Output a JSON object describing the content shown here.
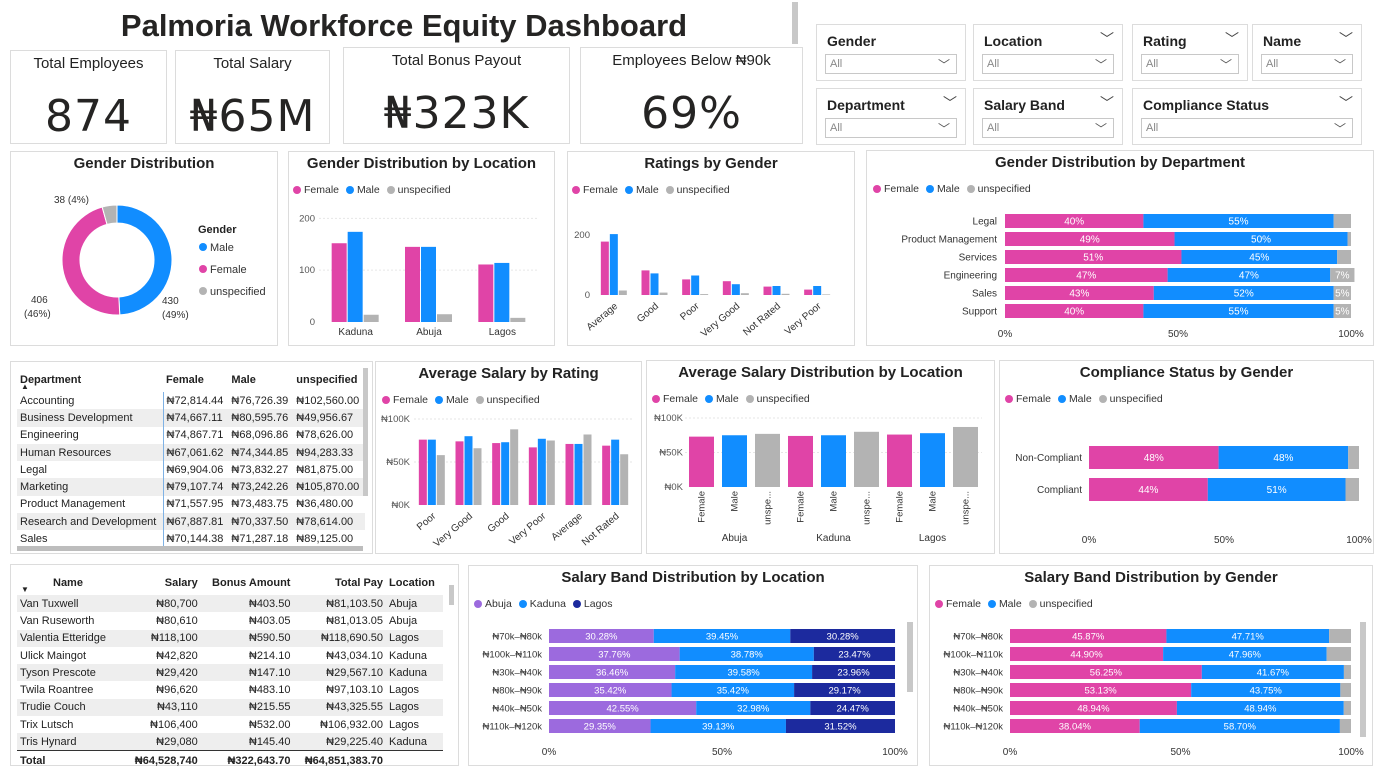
{
  "header": {
    "title": "Palmoria Workforce Equity Dashboard"
  },
  "kpis": [
    {
      "label": "Total Employees",
      "value": "874"
    },
    {
      "label": "Total Salary",
      "value": "₦65M"
    },
    {
      "label": "Total Bonus Payout",
      "value": "₦323K"
    },
    {
      "label": "Employees Below ₦90k",
      "value": "69%"
    }
  ],
  "slicers": [
    {
      "label": "Gender",
      "value": "All"
    },
    {
      "label": "Location",
      "value": "All"
    },
    {
      "label": "Rating",
      "value": "All"
    },
    {
      "label": "Name",
      "value": "All"
    },
    {
      "label": "Department",
      "value": "All"
    },
    {
      "label": "Salary Band",
      "value": "All"
    },
    {
      "label": "Compliance Status",
      "value": "All"
    }
  ],
  "colors": {
    "female": "#E044A7",
    "male": "#118DFF",
    "unspecified": "#B3B3B3",
    "abuja": "#9C6ADE",
    "kaduna": "#118DFF",
    "lagos": "#1C2A9E"
  },
  "legend": {
    "female": "Female",
    "male": "Male",
    "unspecified": "unspecified",
    "abuja": "Abuja",
    "kaduna": "Kaduna",
    "lagos": "Lagos"
  },
  "chart_data": [
    {
      "id": "gender_distribution",
      "type": "pie",
      "title": "Gender Distribution",
      "legend_title": "Gender",
      "legend": [
        "Male",
        "Female",
        "unspecified"
      ],
      "slices": [
        {
          "name": "Male",
          "value": 430,
          "label": "430\n(49%)"
        },
        {
          "name": "Female",
          "value": 406,
          "label": "406\n(46%)"
        },
        {
          "name": "unspecified",
          "value": 38,
          "label": "38 (4%)"
        }
      ]
    },
    {
      "id": "gender_by_location",
      "type": "bar",
      "title": "Gender Distribution by Location",
      "categories": [
        "Kaduna",
        "Abuja",
        "Lagos"
      ],
      "yticks": [
        "0",
        "100",
        "200"
      ],
      "ylim": [
        0,
        220
      ],
      "series": [
        {
          "name": "Female",
          "values": [
            152,
            145,
            111
          ]
        },
        {
          "name": "Male",
          "values": [
            174,
            145,
            114
          ]
        },
        {
          "name": "unspecified",
          "values": [
            14,
            15,
            8
          ]
        }
      ]
    },
    {
      "id": "ratings_by_gender",
      "type": "bar",
      "title": "Ratings by Gender",
      "categories": [
        "Average",
        "Good",
        "Poor",
        "Very Good",
        "Not Rated",
        "Very Poor"
      ],
      "yticks": [
        "0",
        "200"
      ],
      "ylim": [
        0,
        230
      ],
      "series": [
        {
          "name": "Female",
          "values": [
            178,
            82,
            52,
            46,
            28,
            18
          ]
        },
        {
          "name": "Male",
          "values": [
            203,
            72,
            65,
            36,
            30,
            30
          ]
        },
        {
          "name": "unspecified",
          "values": [
            15,
            8,
            3,
            6,
            4,
            2
          ]
        }
      ]
    },
    {
      "id": "gender_by_department",
      "type": "bar",
      "orientation": "stacked-100",
      "title": "Gender Distribution by Department",
      "categories": [
        "Legal",
        "Product Management",
        "Services",
        "Engineering",
        "Sales",
        "Support"
      ],
      "xticks": [
        "0%",
        "50%",
        "100%"
      ],
      "series": [
        {
          "name": "Female",
          "values": [
            40,
            49,
            51,
            47,
            43,
            40
          ],
          "labels": [
            "40%",
            "49%",
            "51%",
            "47%",
            "43%",
            "40%"
          ]
        },
        {
          "name": "Male",
          "values": [
            55,
            50,
            45,
            47,
            52,
            55
          ],
          "labels": [
            "55%",
            "50%",
            "45%",
            "47%",
            "52%",
            "55%"
          ]
        },
        {
          "name": "unspecified",
          "values": [
            5,
            1,
            4,
            7,
            5,
            5
          ],
          "labels": [
            "",
            "",
            "",
            "7%",
            "5%",
            "5%"
          ]
        }
      ]
    },
    {
      "id": "avg_salary_by_rating",
      "type": "bar",
      "title": "Average Salary by Rating",
      "categories": [
        "Poor",
        "Very Good",
        "Good",
        "Very Poor",
        "Average",
        "Not Rated"
      ],
      "yticks": [
        "₦0K",
        "₦50K",
        "₦100K"
      ],
      "ylim": [
        0,
        100000
      ],
      "series": [
        {
          "name": "Female",
          "values": [
            76000,
            74000,
            72000,
            67000,
            71000,
            69000
          ]
        },
        {
          "name": "Male",
          "values": [
            76000,
            80000,
            73000,
            77000,
            71000,
            76000
          ]
        },
        {
          "name": "unspecified",
          "values": [
            58000,
            66000,
            88000,
            75000,
            82000,
            59000
          ]
        }
      ]
    },
    {
      "id": "avg_salary_by_location",
      "type": "bar",
      "title": "Average Salary Distribution by Location",
      "groups": [
        "Abuja",
        "Kaduna",
        "Lagos"
      ],
      "categories": [
        "Female",
        "Male",
        "unspe..."
      ],
      "yticks": [
        "₦0K",
        "₦50K",
        "₦100K"
      ],
      "ylim": [
        0,
        100000
      ],
      "series": [
        {
          "name": "Abuja",
          "values": [
            73000,
            75000,
            77000
          ]
        },
        {
          "name": "Kaduna",
          "values": [
            74000,
            75000,
            80000
          ]
        },
        {
          "name": "Lagos",
          "values": [
            76000,
            78000,
            87000
          ]
        }
      ]
    },
    {
      "id": "compliance_by_gender",
      "type": "bar",
      "orientation": "stacked-100",
      "title": "Compliance Status by Gender",
      "categories": [
        "Non-Compliant",
        "Compliant"
      ],
      "xticks": [
        "0%",
        "50%",
        "100%"
      ],
      "series": [
        {
          "name": "Female",
          "values": [
            48,
            44
          ],
          "labels": [
            "48%",
            "44%"
          ]
        },
        {
          "name": "Male",
          "values": [
            48,
            51
          ],
          "labels": [
            "48%",
            "51%"
          ]
        },
        {
          "name": "unspecified",
          "values": [
            4,
            5
          ],
          "labels": [
            "",
            ""
          ]
        }
      ]
    },
    {
      "id": "salary_band_by_location",
      "type": "bar",
      "orientation": "stacked-100",
      "title": "Salary Band Distribution by Location",
      "categories": [
        "₦70k–₦80k",
        "₦100k–₦110k",
        "₦30k–₦40k",
        "₦80k–₦90k",
        "₦40k–₦50k",
        "₦110k–₦120k"
      ],
      "xticks": [
        "0%",
        "50%",
        "100%"
      ],
      "series": [
        {
          "name": "Abuja",
          "values": [
            30.28,
            37.76,
            36.46,
            35.42,
            42.55,
            29.35
          ],
          "labels": [
            "30.28%",
            "37.76%",
            "36.46%",
            "35.42%",
            "42.55%",
            "29.35%"
          ]
        },
        {
          "name": "Kaduna",
          "values": [
            39.45,
            38.78,
            39.58,
            35.42,
            32.98,
            39.13
          ],
          "labels": [
            "39.45%",
            "38.78%",
            "39.58%",
            "35.42%",
            "32.98%",
            "39.13%"
          ]
        },
        {
          "name": "Lagos",
          "values": [
            30.28,
            23.47,
            23.96,
            29.17,
            24.47,
            31.52
          ],
          "labels": [
            "30.28%",
            "23.47%",
            "23.96%",
            "29.17%",
            "24.47%",
            "31.52%"
          ]
        }
      ]
    },
    {
      "id": "salary_band_by_gender",
      "type": "bar",
      "orientation": "stacked-100",
      "title": "Salary Band Distribution by Gender",
      "categories": [
        "₦70k–₦80k",
        "₦100k–₦110k",
        "₦30k–₦40k",
        "₦80k–₦90k",
        "₦40k–₦50k",
        "₦110k–₦120k"
      ],
      "xticks": [
        "0%",
        "50%",
        "100%"
      ],
      "series": [
        {
          "name": "Female",
          "values": [
            45.87,
            44.9,
            56.25,
            53.13,
            48.94,
            38.04
          ],
          "labels": [
            "45.87%",
            "44.90%",
            "56.25%",
            "53.13%",
            "48.94%",
            "38.04%"
          ]
        },
        {
          "name": "Male",
          "values": [
            47.71,
            47.96,
            41.67,
            43.75,
            48.94,
            58.7
          ],
          "labels": [
            "47.71%",
            "47.96%",
            "41.67%",
            "43.75%",
            "48.94%",
            "58.70%"
          ]
        },
        {
          "name": "unspecified",
          "values": [
            6.42,
            7.14,
            2.08,
            3.12,
            2.12,
            3.26
          ],
          "labels": [
            "",
            "",
            "",
            "",
            "",
            ""
          ]
        }
      ]
    }
  ],
  "dept_table": {
    "headers": [
      "Department",
      "Female",
      "Male",
      "unspecified"
    ],
    "rows": [
      [
        "Accounting",
        "₦72,814.44",
        "₦76,726.39",
        "₦102,560.00"
      ],
      [
        "Business Development",
        "₦74,667.11",
        "₦80,595.76",
        "₦49,956.67"
      ],
      [
        "Engineering",
        "₦74,867.71",
        "₦68,096.86",
        "₦78,626.00"
      ],
      [
        "Human Resources",
        "₦67,061.62",
        "₦74,344.85",
        "₦94,283.33"
      ],
      [
        "Legal",
        "₦69,904.06",
        "₦73,832.27",
        "₦81,875.00"
      ],
      [
        "Marketing",
        "₦79,107.74",
        "₦73,242.26",
        "₦105,870.00"
      ],
      [
        "Product Management",
        "₦71,557.95",
        "₦73,483.75",
        "₦36,480.00"
      ],
      [
        "Research and Development",
        "₦67,887.81",
        "₦70,337.50",
        "₦78,614.00"
      ],
      [
        "Sales",
        "₦70,144.38",
        "₦71,287.18",
        "₦89,125.00"
      ]
    ]
  },
  "emp_table": {
    "headers": [
      "Name",
      "Salary",
      "Bonus Amount",
      "Total Pay",
      "Location"
    ],
    "rows": [
      [
        "Van Tuxwell",
        "₦80,700",
        "₦403.50",
        "₦81,103.50",
        "Abuja"
      ],
      [
        "Van Ruseworth",
        "₦80,610",
        "₦403.05",
        "₦81,013.05",
        "Abuja"
      ],
      [
        "Valentia Etteridge",
        "₦118,100",
        "₦590.50",
        "₦118,690.50",
        "Lagos"
      ],
      [
        "Ulick Maingot",
        "₦42,820",
        "₦214.10",
        "₦43,034.10",
        "Kaduna"
      ],
      [
        "Tyson Prescote",
        "₦29,420",
        "₦147.10",
        "₦29,567.10",
        "Kaduna"
      ],
      [
        "Twila Roantree",
        "₦96,620",
        "₦483.10",
        "₦97,103.10",
        "Lagos"
      ],
      [
        "Trudie Couch",
        "₦43,110",
        "₦215.55",
        "₦43,325.55",
        "Lagos"
      ],
      [
        "Trix Lutsch",
        "₦106,400",
        "₦532.00",
        "₦106,932.00",
        "Lagos"
      ],
      [
        "Tris Hynard",
        "₦29,080",
        "₦145.40",
        "₦29,225.40",
        "Kaduna"
      ]
    ],
    "total": [
      "Total",
      "₦64,528,740",
      "₦322,643.70",
      "₦64,851,383.70",
      ""
    ]
  }
}
